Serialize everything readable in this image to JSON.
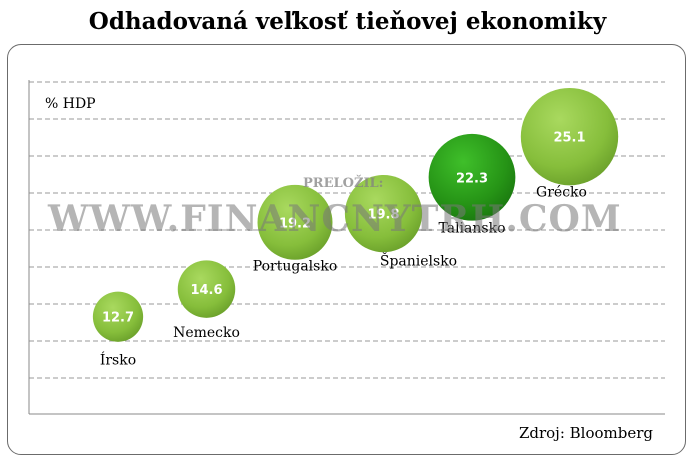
{
  "title": "Odhadovaná veľkosť tieňovej ekonomiky",
  "source": "Zdroj: Bloomberg",
  "watermark": {
    "small": "PRELOŽIL:",
    "large": "WWW.FINANCNYTRH.COM"
  },
  "chart_data": {
    "type": "scatter",
    "ylabel": "% HDP",
    "ylim": [
      6,
      29
    ],
    "grid": true,
    "points": [
      {
        "label": "Írsko",
        "value": 12.7,
        "value_label": "12.7",
        "color": "#8cc63e"
      },
      {
        "label": "Nemecko",
        "value": 14.6,
        "value_label": "14.6",
        "color": "#8cc63e"
      },
      {
        "label": "Portugalsko",
        "value": 19.2,
        "value_label": "19.2",
        "color": "#8cc63e"
      },
      {
        "label": "Španielsko",
        "value": 19.8,
        "value_label": "19.8",
        "color": "#8cc63e"
      },
      {
        "label": "Taliansko",
        "value": 22.3,
        "value_label": "22.3",
        "color": "#2e9e1f"
      },
      {
        "label": "Grécko",
        "value": 25.1,
        "value_label": "25.1",
        "color": "#8cc63e"
      }
    ]
  }
}
